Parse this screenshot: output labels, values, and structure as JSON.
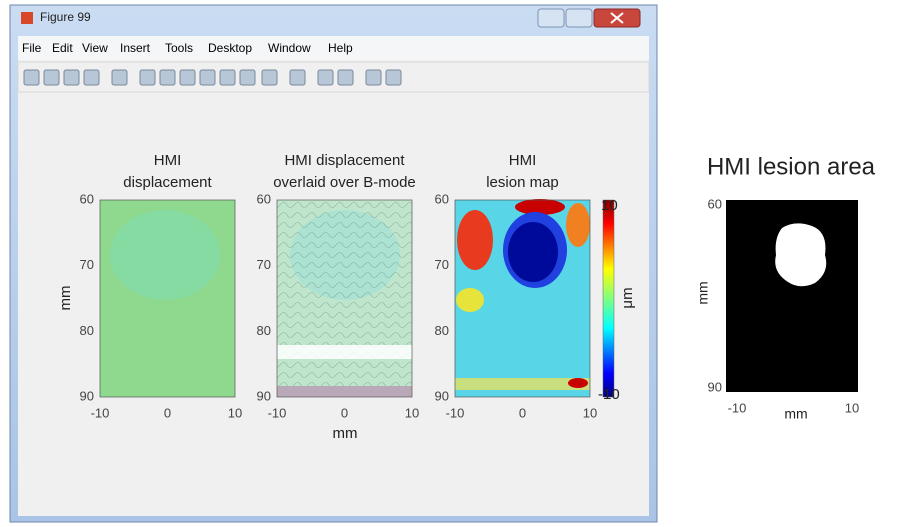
{
  "window": {
    "title": "Figure 99",
    "menu": [
      "File",
      "Edit",
      "View",
      "Insert",
      "Tools",
      "Desktop",
      "Window",
      "Help"
    ]
  },
  "figure": {
    "xlabel": "mm",
    "ylabel": "mm",
    "panels": [
      {
        "title": [
          "HMI",
          "displacement"
        ],
        "xticks": [
          -10,
          0,
          10
        ],
        "yticks": [
          60,
          70,
          80,
          90
        ]
      },
      {
        "title": [
          "HMI displacement",
          "overlaid over B-mode"
        ],
        "xticks": [
          -10,
          0,
          10
        ],
        "yticks": [
          60,
          70,
          80,
          90
        ]
      },
      {
        "title": [
          "HMI",
          "lesion map"
        ],
        "xticks": [
          -10,
          0,
          10
        ],
        "yticks": [
          60,
          70,
          80,
          90
        ]
      }
    ],
    "colorbar": {
      "ticks": [
        10,
        -10
      ],
      "label": "μm"
    }
  },
  "lesion_area": {
    "title": "HMI lesion area",
    "xlabel": "mm",
    "ylabel": "mm",
    "xticks": [
      -10,
      10
    ],
    "yticks": [
      60,
      90
    ]
  }
}
